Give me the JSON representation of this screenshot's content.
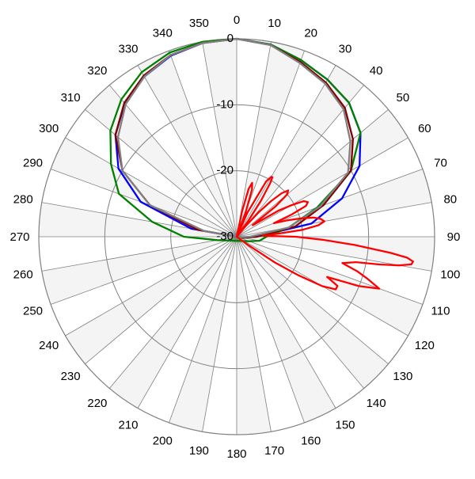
{
  "chart_data": {
    "type": "polar-line",
    "title": "",
    "angular_ticks": [
      "0",
      "10",
      "20",
      "30",
      "40",
      "50",
      "60",
      "70",
      "80",
      "90",
      "100",
      "110",
      "120",
      "130",
      "140",
      "150",
      "160",
      "170",
      "180",
      "190",
      "200",
      "210",
      "220",
      "230",
      "240",
      "250",
      "260",
      "270",
      "280",
      "290",
      "300",
      "310",
      "320",
      "330",
      "340",
      "350"
    ],
    "radial_ticks": [
      "0",
      "-10",
      "-20",
      "-30"
    ],
    "r_range": [
      -30,
      0
    ],
    "grid": true,
    "legend": "none",
    "angle_unit": "deg",
    "series": [
      {
        "color": "#0000ff",
        "angles": [
          0,
          10,
          20,
          30,
          40,
          50,
          60,
          70,
          80,
          90,
          100,
          270,
          280,
          290,
          300,
          310,
          320,
          330,
          340,
          350
        ],
        "values": [
          0,
          -0.4,
          -1.5,
          -2.5,
          -3.5,
          -5.5,
          -8.5,
          -13,
          -18.5,
          -27,
          -29,
          -30,
          -23,
          -14.5,
          -9.3,
          -6,
          -3.6,
          -2,
          -0.8,
          -0.2
        ]
      },
      {
        "color": "#008000",
        "angles": [
          0,
          10,
          20,
          30,
          40,
          50,
          60,
          70,
          80,
          90,
          100,
          110,
          260,
          270,
          280,
          290,
          300,
          310,
          320,
          330,
          340,
          350
        ],
        "values": [
          0,
          -0.4,
          -1.5,
          -2.5,
          -3.5,
          -5.5,
          -10,
          -17,
          -22,
          -25.5,
          -26.5,
          -28,
          -27,
          -22,
          -17,
          -11,
          -8,
          -5,
          -2.8,
          -1.2,
          -0.3,
          0
        ]
      },
      {
        "color": "#800000",
        "angles": [
          0,
          10,
          20,
          30,
          40,
          50,
          60,
          70,
          80,
          90,
          100,
          270,
          280,
          290,
          300,
          310,
          320,
          330,
          340,
          350
        ],
        "values": [
          0,
          -0.5,
          -1.8,
          -3,
          -4.5,
          -7,
          -10,
          -16,
          -21,
          -27,
          -29,
          -30,
          -24,
          -16,
          -10,
          -6,
          -3.5,
          -1.8,
          -0.7,
          -0.2
        ]
      },
      {
        "color": "#808080",
        "angles": [
          0,
          10,
          20,
          30,
          40,
          50,
          60,
          70,
          80,
          90,
          100,
          270,
          280,
          290,
          300,
          310,
          320,
          330,
          340,
          350
        ],
        "values": [
          0,
          -0.5,
          -2,
          -3.2,
          -4.8,
          -7.5,
          -10.5,
          -16.5,
          -22,
          -28,
          -29.5,
          -30,
          -25,
          -16,
          -10,
          -6.5,
          -3.8,
          -2,
          -0.7,
          -0.2
        ]
      },
      {
        "color": "#ff0000",
        "angles": [
          10,
          12,
          14,
          16,
          18,
          20,
          22,
          24,
          28,
          30,
          31,
          32,
          34,
          36,
          38,
          40,
          42,
          44,
          46,
          48,
          50,
          52,
          54,
          56,
          58,
          60,
          62,
          64,
          66,
          68,
          70,
          72,
          74,
          76,
          78,
          80,
          82,
          84,
          86,
          88,
          90,
          92,
          94,
          96,
          97,
          98,
          99,
          100,
          101,
          102,
          104,
          106,
          108,
          110,
          112,
          114,
          116,
          118,
          120,
          122,
          124,
          126,
          128,
          130,
          132,
          134,
          136,
          138,
          140,
          142,
          144,
          146,
          150,
          160,
          170,
          180
        ],
        "values": [
          -30,
          -26,
          -22.5,
          -21.5,
          -22.5,
          -26,
          -30,
          -26,
          -20.5,
          -19.5,
          -19.5,
          -20.5,
          -23.5,
          -27,
          -30,
          -28,
          -25,
          -22.5,
          -20.5,
          -19.5,
          -20,
          -22.5,
          -27,
          -26,
          -22.5,
          -20.5,
          -18.5,
          -18,
          -18.5,
          -21,
          -24,
          -22,
          -20,
          -18,
          -17,
          -16.5,
          -17.5,
          -20,
          -24,
          -26,
          -21,
          -17,
          -12,
          -6.5,
          -4,
          -3,
          -3.2,
          -5,
          -8,
          -11.5,
          -13.5,
          -11,
          -9,
          -7,
          -10,
          -15,
          -13,
          -13,
          -15,
          -19,
          -23,
          -28,
          -30,
          -30,
          -30,
          -30,
          -30,
          -30,
          -30,
          -30,
          -30,
          -30,
          -30,
          -30,
          -30,
          -30
        ]
      }
    ]
  }
}
